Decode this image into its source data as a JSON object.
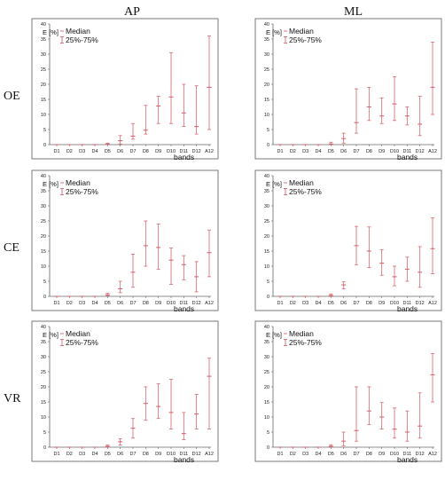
{
  "columns": [
    "AP",
    "ML"
  ],
  "rows": [
    "OE",
    "CE",
    "VR"
  ],
  "chart_data": [
    {
      "type": "scatter",
      "row": "OE",
      "column": "AP",
      "ylabel": "E [%]",
      "xlabel": "bands",
      "categories": [
        "D1",
        "D2",
        "D3",
        "D4",
        "D5",
        "D6",
        "D7",
        "D8",
        "D9",
        "D10",
        "D11",
        "D12",
        "A12"
      ],
      "yticks": [
        0,
        5,
        10,
        15,
        20,
        25,
        30,
        35,
        40
      ],
      "ylim": [
        0,
        40
      ],
      "legend": [
        "Median",
        "25%-75%"
      ],
      "median": [
        0,
        0,
        0,
        0,
        0.2,
        1.3,
        2.8,
        4.8,
        12.8,
        15.8,
        10.5,
        6.0,
        19.0
      ],
      "q25": [
        0,
        0,
        0,
        0,
        0,
        0.2,
        1.8,
        3.5,
        7.0,
        7.0,
        6.0,
        3.5,
        5.0
      ],
      "q75": [
        0,
        0,
        0,
        0,
        0.5,
        3.0,
        7.0,
        13.0,
        16.0,
        30.5,
        20.0,
        19.5,
        36.0
      ]
    },
    {
      "type": "scatter",
      "row": "OE",
      "column": "ML",
      "ylabel": "E [%]",
      "xlabel": "bands",
      "categories": [
        "D1",
        "D2",
        "D3",
        "D4",
        "D5",
        "D6",
        "D7",
        "D8",
        "D9",
        "D10",
        "D11",
        "D12",
        "A12"
      ],
      "yticks": [
        0,
        5,
        10,
        15,
        20,
        25,
        30,
        35,
        40
      ],
      "ylim": [
        0,
        40
      ],
      "legend": [
        "Median",
        "25%-75%"
      ],
      "median": [
        0,
        0,
        0,
        0,
        0.2,
        2.0,
        7.3,
        12.5,
        9.5,
        13.5,
        9.5,
        6.8,
        19.0
      ],
      "q25": [
        0,
        0,
        0,
        0,
        0,
        0.5,
        3.8,
        8.0,
        7.0,
        8.0,
        6.5,
        3.0,
        10.0
      ],
      "q75": [
        0,
        0,
        0,
        0,
        0.8,
        3.8,
        18.5,
        19.0,
        15.5,
        22.5,
        12.5,
        16.0,
        34.0
      ]
    },
    {
      "type": "scatter",
      "row": "CE",
      "column": "AP",
      "ylabel": "E [%]",
      "xlabel": "bands",
      "categories": [
        "D1",
        "D2",
        "D3",
        "D4",
        "D5",
        "D6",
        "D7",
        "D8",
        "D9",
        "D10",
        "D11",
        "D12",
        "A12"
      ],
      "yticks": [
        0,
        5,
        10,
        15,
        20,
        25,
        30,
        35,
        40
      ],
      "ylim": [
        0,
        40
      ],
      "legend": [
        "Median",
        "25%-75%"
      ],
      "median": [
        0,
        0,
        0,
        0,
        0.5,
        2.5,
        8.0,
        16.8,
        16.2,
        12.0,
        10.5,
        6.5,
        14.5
      ],
      "q25": [
        0,
        0,
        0,
        0,
        0.2,
        1.2,
        3.0,
        10.0,
        9.0,
        4.0,
        5.5,
        1.5,
        6.5
      ],
      "q75": [
        0,
        0,
        0,
        0,
        1.0,
        5.0,
        14.0,
        25.0,
        24.0,
        16.0,
        13.5,
        11.5,
        22.0
      ]
    },
    {
      "type": "scatter",
      "row": "CE",
      "column": "ML",
      "ylabel": "E [%]",
      "xlabel": "bands",
      "categories": [
        "D1",
        "D2",
        "D3",
        "D4",
        "D5",
        "D6",
        "D7",
        "D8",
        "D9",
        "D10",
        "D11",
        "D12",
        "A12"
      ],
      "yticks": [
        0,
        5,
        10,
        15,
        20,
        25,
        30,
        35,
        40
      ],
      "ylim": [
        0,
        40
      ],
      "legend": [
        "Median",
        "25%-75%"
      ],
      "median": [
        0,
        0,
        0,
        0,
        0.3,
        3.8,
        16.8,
        15.0,
        11.0,
        6.5,
        9.0,
        8.0,
        15.8
      ],
      "q25": [
        0,
        0,
        0,
        0,
        0,
        2.5,
        10.5,
        9.5,
        7.0,
        3.5,
        5.0,
        3.0,
        7.5
      ],
      "q75": [
        0,
        0,
        0,
        0,
        0.8,
        4.8,
        23.2,
        23.0,
        15.5,
        10.0,
        13.0,
        16.5,
        26.0
      ]
    },
    {
      "type": "scatter",
      "row": "VR",
      "column": "AP",
      "ylabel": "E [%]",
      "xlabel": "bands",
      "categories": [
        "D1",
        "D2",
        "D3",
        "D4",
        "D5",
        "D6",
        "D7",
        "D8",
        "D9",
        "D10",
        "D11",
        "D12",
        "A12"
      ],
      "yticks": [
        0,
        5,
        10,
        15,
        20,
        25,
        30,
        35,
        40
      ],
      "ylim": [
        0,
        40
      ],
      "legend": [
        "Median",
        "25%-75%"
      ],
      "median": [
        0,
        0,
        0,
        0,
        0.3,
        1.8,
        6.3,
        14.5,
        13.5,
        11.5,
        4.5,
        11.0,
        23.5
      ],
      "q25": [
        0,
        0,
        0,
        0,
        0,
        0.7,
        3.0,
        9.0,
        9.5,
        6.0,
        2.5,
        6.0,
        6.0
      ],
      "q75": [
        0,
        0,
        0,
        0,
        0.7,
        2.8,
        9.5,
        20.0,
        21.0,
        22.5,
        11.5,
        17.5,
        29.5
      ]
    },
    {
      "type": "scatter",
      "row": "VR",
      "column": "ML",
      "ylabel": "E [%]",
      "xlabel": "bands",
      "categories": [
        "D1",
        "D2",
        "D3",
        "D4",
        "D5",
        "D6",
        "D7",
        "D8",
        "D9",
        "D10",
        "D11",
        "D12",
        "A12"
      ],
      "yticks": [
        0,
        5,
        10,
        15,
        20,
        25,
        30,
        35,
        40
      ],
      "ylim": [
        0,
        40
      ],
      "legend": [
        "Median",
        "25%-75%"
      ],
      "median": [
        0,
        0,
        0,
        0,
        0.3,
        2.0,
        5.5,
        12.0,
        10.0,
        6.0,
        5.0,
        7.0,
        24.0
      ],
      "q25": [
        0,
        0,
        0,
        0,
        0,
        0.5,
        2.0,
        7.5,
        6.0,
        3.0,
        2.0,
        3.0,
        15.0
      ],
      "q75": [
        0,
        0,
        0,
        0,
        0.8,
        5.0,
        20.0,
        20.0,
        14.8,
        13.0,
        12.0,
        18.0,
        31.0
      ]
    }
  ]
}
